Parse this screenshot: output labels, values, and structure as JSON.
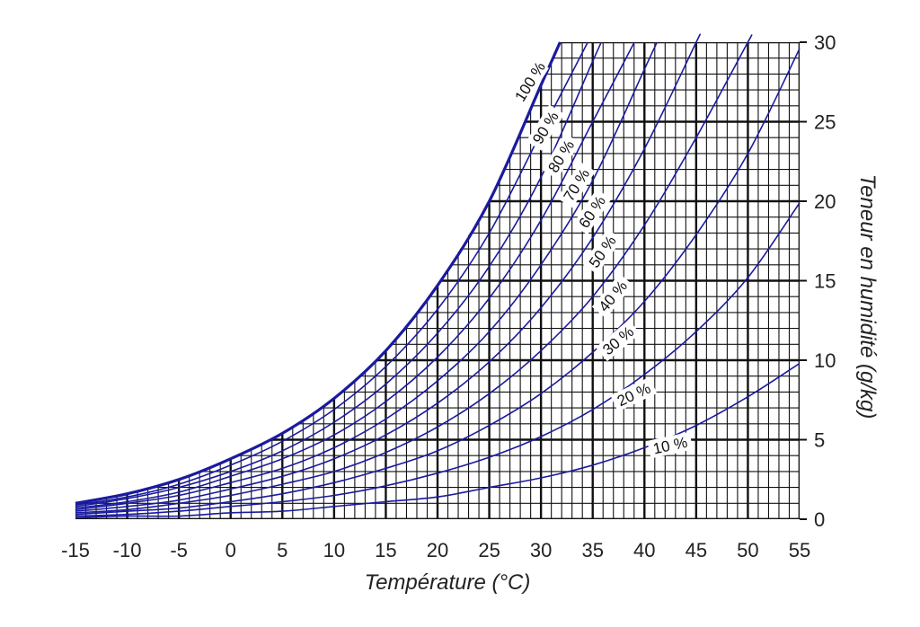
{
  "chart_data": {
    "type": "line",
    "title": "",
    "xlabel": "Température (°C)",
    "ylabel": "Teneur en humidité (g/kg)",
    "xlim": [
      -15,
      55
    ],
    "ylim": [
      0,
      30
    ],
    "x_ticks": [
      "-15",
      "-10",
      "-5",
      "0",
      "5",
      "10",
      "15",
      "20",
      "25",
      "30",
      "35",
      "40",
      "45",
      "50",
      "55"
    ],
    "y_ticks": [
      "0",
      "5",
      "10",
      "15",
      "20",
      "25",
      "30"
    ],
    "grid": true,
    "line_color": "#1a1aa0",
    "x": [
      -15,
      -10,
      -5,
      0,
      5,
      10,
      15,
      20,
      25,
      30,
      35,
      40,
      45,
      50,
      55
    ],
    "series": [
      {
        "name": "100 %",
        "values": [
          1.0,
          1.6,
          2.5,
          3.8,
          5.4,
          7.6,
          10.6,
          14.7,
          20.0,
          27.3,
          null,
          null,
          null,
          null,
          null
        ]
      },
      {
        "name": "90 %",
        "values": [
          0.9,
          1.4,
          2.2,
          3.4,
          4.9,
          6.9,
          9.6,
          13.2,
          18.0,
          24.3,
          null,
          null,
          null,
          null,
          null
        ]
      },
      {
        "name": "80 %",
        "values": [
          0.8,
          1.3,
          2.0,
          3.0,
          4.3,
          6.1,
          8.5,
          11.7,
          15.9,
          21.5,
          28.8,
          null,
          null,
          null,
          null
        ]
      },
      {
        "name": "70 %",
        "values": [
          0.7,
          1.1,
          1.7,
          2.7,
          3.8,
          5.3,
          7.4,
          10.2,
          13.9,
          18.8,
          25.0,
          null,
          null,
          null,
          null
        ]
      },
      {
        "name": "60 %",
        "values": [
          0.6,
          1.0,
          1.5,
          2.3,
          3.2,
          4.5,
          6.3,
          8.7,
          11.8,
          16.0,
          21.3,
          28.3,
          null,
          null,
          null
        ]
      },
      {
        "name": "50 %",
        "values": [
          0.5,
          0.8,
          1.2,
          1.9,
          2.7,
          3.8,
          5.3,
          7.3,
          9.9,
          13.3,
          17.7,
          23.3,
          30.0,
          null,
          null
        ]
      },
      {
        "name": "40 %",
        "values": [
          0.4,
          0.6,
          1.0,
          1.5,
          2.2,
          3.0,
          4.2,
          5.8,
          7.9,
          10.6,
          14.0,
          18.5,
          24.0,
          30.0,
          null
        ]
      },
      {
        "name": "30 %",
        "values": [
          0.3,
          0.5,
          0.7,
          1.1,
          1.6,
          2.3,
          3.2,
          4.3,
          5.9,
          7.9,
          10.5,
          13.7,
          17.9,
          23.0,
          29.6
        ]
      },
      {
        "name": "20 %",
        "values": [
          0.2,
          0.3,
          0.5,
          0.8,
          1.1,
          1.5,
          2.1,
          2.9,
          3.9,
          5.2,
          6.9,
          9.1,
          11.8,
          15.2,
          19.9
        ]
      },
      {
        "name": "10 %",
        "values": [
          0.1,
          0.2,
          0.2,
          0.4,
          0.5,
          0.8,
          1.1,
          1.4,
          2.0,
          2.6,
          3.4,
          4.5,
          5.9,
          7.7,
          9.8
        ]
      }
    ],
    "curve_labels": [
      {
        "text": "100 %",
        "x": 29.0,
        "y": 27.5,
        "angle": -58
      },
      {
        "text": "90 %",
        "x": 30.5,
        "y": 24.6,
        "angle": -58
      },
      {
        "text": "80 %",
        "x": 32.0,
        "y": 22.8,
        "angle": -58
      },
      {
        "text": "70 %",
        "x": 33.5,
        "y": 21.0,
        "angle": -58
      },
      {
        "text": "60 %",
        "x": 35.0,
        "y": 19.3,
        "angle": -56
      },
      {
        "text": "50 %",
        "x": 36.0,
        "y": 16.8,
        "angle": -55
      },
      {
        "text": "40 %",
        "x": 37.0,
        "y": 14.0,
        "angle": -50
      },
      {
        "text": "30 %",
        "x": 37.5,
        "y": 11.2,
        "angle": -40
      },
      {
        "text": "20 %",
        "x": 39.0,
        "y": 7.8,
        "angle": -25
      },
      {
        "text": "10 %",
        "x": 42.5,
        "y": 4.6,
        "angle": -12
      }
    ]
  }
}
